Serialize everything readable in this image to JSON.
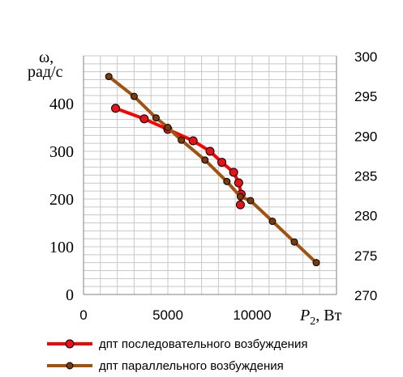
{
  "chart_data": {
    "type": "line",
    "title": "",
    "ylabel_left_line1": "ω,",
    "ylabel_left_line2": "рад/с",
    "xlabel_symbol": "P",
    "xlabel_sub": "2",
    "xlabel_unit": ", Вт",
    "xlim": [
      0,
      15000
    ],
    "ylim_left": [
      0,
      500
    ],
    "ylim_right": [
      270,
      300
    ],
    "x_ticks": [
      0,
      5000,
      10000
    ],
    "y_ticks_left": [
      0,
      100,
      200,
      300,
      400
    ],
    "y_ticks_right": [
      270,
      275,
      280,
      285,
      290,
      295,
      300
    ],
    "grid": true,
    "legend_position": "bottom",
    "series": [
      {
        "name": "дпт последовательного возбуждения",
        "color": "#ff0000",
        "marker_color": "#e8111a",
        "axis": "left",
        "x": [
          1900,
          3600,
          5000,
          6500,
          7500,
          8200,
          8900,
          9200,
          9350,
          9300
        ],
        "y": [
          390,
          368,
          346,
          322,
          300,
          277,
          256,
          234,
          210,
          188
        ]
      },
      {
        "name": "дпт параллельного возбуждения",
        "color": "#a0520f",
        "marker_color": "#7a3a0a",
        "axis": "right",
        "x": [
          1500,
          3000,
          4300,
          5000,
          5800,
          7200,
          8500,
          9300,
          9900,
          11200,
          12500,
          13800
        ],
        "y": [
          297.4,
          294.9,
          292.2,
          291.0,
          289.4,
          286.9,
          284.2,
          282.3,
          281.8,
          279.2,
          276.6,
          274.0
        ]
      }
    ]
  }
}
